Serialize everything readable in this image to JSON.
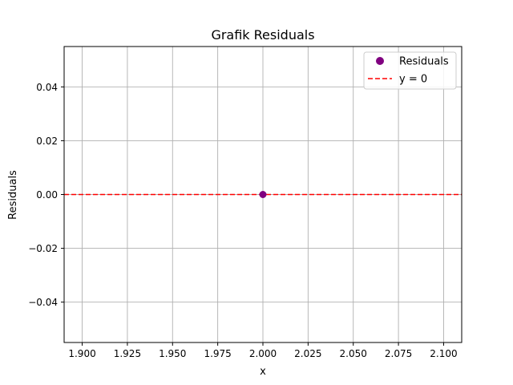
{
  "chart_data": {
    "type": "scatter",
    "title": "Grafik Residuals",
    "xlabel": "x",
    "ylabel": "Residuals",
    "xlim": [
      1.89,
      2.11
    ],
    "ylim": [
      -0.055,
      0.055
    ],
    "xticks": [
      1.9,
      1.925,
      1.95,
      1.975,
      2.0,
      2.025,
      2.05,
      2.075,
      2.1
    ],
    "xtick_labels": [
      "1.900",
      "1.925",
      "1.950",
      "1.975",
      "2.000",
      "2.025",
      "2.050",
      "2.075",
      "2.100"
    ],
    "yticks": [
      -0.04,
      -0.02,
      0.0,
      0.02,
      0.04
    ],
    "ytick_labels": [
      "−0.04",
      "−0.02",
      "0.00",
      "0.02",
      "0.04"
    ],
    "grid": true,
    "series": [
      {
        "name": "Residuals",
        "kind": "scatter",
        "x": [
          2.0
        ],
        "y": [
          0.0
        ],
        "color": "#800080"
      },
      {
        "name": "y = 0",
        "kind": "hline",
        "y": 0.0,
        "color": "#ff0000",
        "style": "dashed"
      }
    ],
    "legend": {
      "position": "top-right",
      "entries": [
        "Residuals",
        "y = 0"
      ]
    }
  }
}
